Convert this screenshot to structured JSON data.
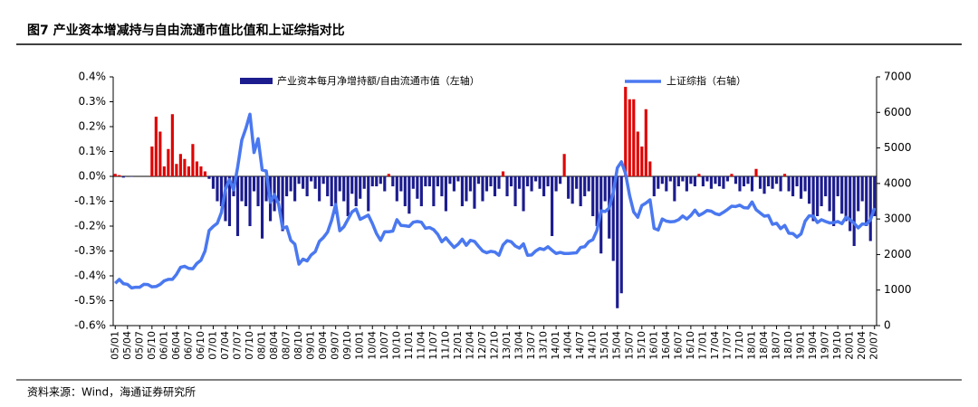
{
  "chart_data": {
    "type": "bar_line",
    "title": "图7  产业资本增减持与自由流通市值比值和上证综指对比",
    "source": "资料来源：Wind，海通证券研究所",
    "categories": [
      "05/01",
      null,
      null,
      "05/04",
      null,
      null,
      "05/07",
      null,
      null,
      "05/10",
      null,
      null,
      "06/01",
      null,
      null,
      "06/04",
      null,
      null,
      "06/07",
      null,
      null,
      "06/10",
      null,
      null,
      "07/01",
      null,
      null,
      "07/04",
      null,
      null,
      "07/07",
      null,
      null,
      "07/10",
      null,
      null,
      "08/01",
      null,
      null,
      "08/04",
      null,
      null,
      "08/07",
      null,
      null,
      "08/10",
      null,
      null,
      "09/01",
      null,
      null,
      "09/04",
      null,
      null,
      "09/07",
      null,
      null,
      "09/10",
      null,
      null,
      "10/01",
      null,
      null,
      "10/04",
      null,
      null,
      "10/07",
      null,
      null,
      "10/10",
      null,
      null,
      "11/01",
      null,
      null,
      "11/04",
      null,
      null,
      "11/07",
      null,
      null,
      "11/10",
      null,
      null,
      "12/01",
      null,
      null,
      "12/04",
      null,
      null,
      "12/07",
      null,
      null,
      "12/10",
      null,
      null,
      "13/01",
      null,
      null,
      "13/04",
      null,
      null,
      "13/07",
      null,
      null,
      "13/10",
      null,
      null,
      "14/01",
      null,
      null,
      "14/04",
      null,
      null,
      "14/07",
      null,
      null,
      "14/10",
      null,
      null,
      "15/01",
      null,
      null,
      "15/04",
      null,
      null,
      "15/07",
      null,
      null,
      "15/10",
      null,
      null,
      "16/01",
      null,
      null,
      "16/04",
      null,
      null,
      "16/07",
      null,
      null,
      "16/10",
      null,
      null,
      "17/01",
      null,
      null,
      "17/04",
      null,
      null,
      "17/07",
      null,
      null,
      "17/10",
      null,
      null,
      "18/01",
      null,
      null,
      "18/04",
      null,
      null,
      "18/07",
      null,
      null,
      "18/10",
      null,
      null,
      "19/01",
      null,
      null,
      "19/04",
      null,
      null,
      "19/07",
      null,
      null,
      "19/10",
      null,
      null,
      "20/01",
      null,
      null,
      "20/04",
      null,
      null,
      "20/07"
    ],
    "series": [
      {
        "name": "产业资本每月净增持额/自由流通市值（左轴）",
        "type": "bar",
        "color": "#1c1c8f",
        "positive_color": "#e00000",
        "values": [
          0.01,
          0.005,
          -0.005,
          0,
          -0.002,
          0,
          0,
          0,
          0,
          0.12,
          0.24,
          0.18,
          0.04,
          0.11,
          0.25,
          0.05,
          0.09,
          0.07,
          0.04,
          0.13,
          0.06,
          0.04,
          0.02,
          -0.01,
          -0.05,
          -0.1,
          -0.12,
          -0.18,
          -0.2,
          -0.08,
          -0.24,
          -0.1,
          -0.12,
          -0.2,
          -0.06,
          -0.12,
          -0.25,
          -0.1,
          -0.18,
          -0.14,
          -0.1,
          -0.22,
          -0.08,
          -0.06,
          -0.1,
          -0.03,
          -0.05,
          -0.08,
          -0.02,
          -0.05,
          -0.1,
          -0.03,
          -0.08,
          -0.12,
          -0.15,
          -0.06,
          -0.1,
          -0.16,
          -0.07,
          -0.12,
          -0.09,
          -0.05,
          -0.14,
          -0.04,
          -0.04,
          -0.03,
          -0.06,
          0.01,
          -0.04,
          -0.1,
          -0.06,
          -0.12,
          -0.15,
          -0.05,
          -0.09,
          -0.12,
          -0.04,
          -0.04,
          -0.12,
          -0.04,
          -0.08,
          -0.14,
          -0.03,
          -0.06,
          -0.02,
          -0.12,
          -0.1,
          -0.06,
          -0.13,
          -0.03,
          -0.1,
          -0.06,
          -0.04,
          -0.08,
          -0.05,
          0.02,
          -0.08,
          -0.04,
          -0.12,
          -0.05,
          -0.14,
          -0.04,
          -0.06,
          -0.02,
          -0.05,
          -0.08,
          -0.04,
          -0.24,
          -0.06,
          -0.03,
          0.09,
          -0.09,
          -0.11,
          -0.05,
          -0.12,
          -0.08,
          -0.06,
          -0.16,
          -0.2,
          -0.31,
          -0.1,
          -0.25,
          -0.34,
          -0.53,
          -0.47,
          0.36,
          0.31,
          0.31,
          0.18,
          0.12,
          0.27,
          0.06,
          -0.08,
          -0.05,
          -0.03,
          -0.06,
          -0.02,
          -0.1,
          -0.04,
          -0.02,
          -0.06,
          -0.03,
          -0.04,
          0.01,
          -0.04,
          -0.02,
          -0.05,
          -0.03,
          -0.04,
          -0.05,
          -0.02,
          0.01,
          -0.03,
          -0.06,
          -0.04,
          -0.03,
          -0.06,
          0.03,
          -0.05,
          -0.07,
          -0.04,
          -0.05,
          -0.03,
          -0.06,
          0.01,
          -0.06,
          -0.08,
          -0.04,
          -0.09,
          -0.06,
          -0.11,
          -0.18,
          -0.16,
          -0.12,
          -0.08,
          -0.14,
          -0.2,
          -0.08,
          -0.15,
          -0.18,
          -0.22,
          -0.28,
          -0.14,
          -0.1,
          -0.2,
          -0.26,
          -0.16
        ]
      },
      {
        "name": "上证综指（右轴）",
        "type": "line",
        "axis": "y2",
        "color": "#4a78f0",
        "values": [
          1190,
          1300,
          1180,
          1160,
          1060,
          1080,
          1080,
          1160,
          1155,
          1090,
          1100,
          1160,
          1260,
          1300,
          1300,
          1440,
          1640,
          1670,
          1610,
          1600,
          1750,
          1840,
          2100,
          2675,
          2790,
          2880,
          3180,
          3840,
          4110,
          3820,
          4470,
          5220,
          5550,
          5950,
          4870,
          5260,
          4380,
          4350,
          3470,
          3690,
          3430,
          2740,
          2780,
          2400,
          2290,
          1730,
          1870,
          1820,
          1990,
          2080,
          2370,
          2480,
          2630,
          2960,
          3410,
          2670,
          2780,
          2990,
          3200,
          3280,
          2990,
          3050,
          3110,
          2870,
          2590,
          2400,
          2640,
          2640,
          2660,
          2980,
          2820,
          2810,
          2790,
          2910,
          2930,
          2910,
          2740,
          2760,
          2700,
          2570,
          2360,
          2470,
          2330,
          2200,
          2290,
          2430,
          2260,
          2400,
          2370,
          2230,
          2100,
          2050,
          2090,
          2070,
          1980,
          2270,
          2390,
          2360,
          2240,
          2180,
          2300,
          1980,
          1990,
          2100,
          2170,
          2140,
          2220,
          2120,
          2030,
          2060,
          2030,
          2030,
          2040,
          2050,
          2200,
          2220,
          2360,
          2420,
          2680,
          3230,
          3210,
          3310,
          3750,
          4440,
          4610,
          4280,
          3660,
          3200,
          3050,
          3380,
          3450,
          3540,
          2740,
          2690,
          3000,
          2940,
          2920,
          2930,
          2980,
          3085,
          3000,
          3100,
          3250,
          3100,
          3160,
          3240,
          3220,
          3150,
          3120,
          3190,
          3270,
          3360,
          3350,
          3390,
          3320,
          3310,
          3480,
          3260,
          3170,
          3080,
          3100,
          2850,
          2880,
          2730,
          2820,
          2600,
          2590,
          2490,
          2580,
          2940,
          3090,
          3080,
          2900,
          2980,
          2930,
          2890,
          2900,
          2930,
          2870,
          3050,
          2980,
          2880,
          2750,
          2860,
          2850,
          2980,
          3310
        ]
      }
    ],
    "ylim": [
      -0.6,
      0.4
    ],
    "yticks": [
      {
        "value": -0.6,
        "label": "-0.6%"
      },
      {
        "value": -0.5,
        "label": "-0.5%"
      },
      {
        "value": -0.4,
        "label": "-0.4%"
      },
      {
        "value": -0.3,
        "label": "-0.3%"
      },
      {
        "value": -0.2,
        "label": "-0.2%"
      },
      {
        "value": -0.1,
        "label": "-0.1%"
      },
      {
        "value": 0,
        "label": "0.0%"
      },
      {
        "value": 0.1,
        "label": "0.1%"
      },
      {
        "value": 0.2,
        "label": "0.2%"
      },
      {
        "value": 0.3,
        "label": "0.3%"
      },
      {
        "value": 0.4,
        "label": "0.4%"
      }
    ],
    "y2lim": [
      0,
      7000
    ],
    "y2ticks": [
      0,
      1000,
      2000,
      3000,
      4000,
      5000,
      6000,
      7000
    ]
  }
}
